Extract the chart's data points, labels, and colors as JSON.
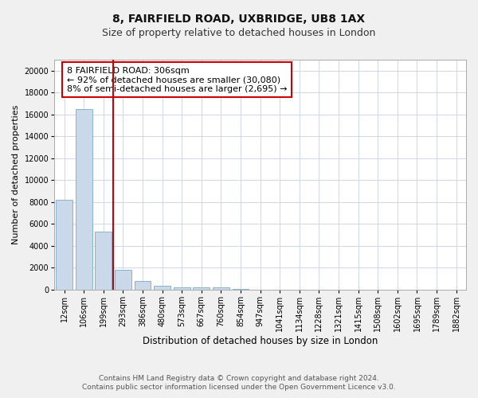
{
  "title1": "8, FAIRFIELD ROAD, UXBRIDGE, UB8 1AX",
  "title2": "Size of property relative to detached houses in London",
  "xlabel": "Distribution of detached houses by size in London",
  "ylabel": "Number of detached properties",
  "categories": [
    "12sqm",
    "106sqm",
    "199sqm",
    "293sqm",
    "386sqm",
    "480sqm",
    "573sqm",
    "667sqm",
    "760sqm",
    "854sqm",
    "947sqm",
    "1041sqm",
    "1134sqm",
    "1228sqm",
    "1321sqm",
    "1415sqm",
    "1508sqm",
    "1602sqm",
    "1695sqm",
    "1789sqm",
    "1882sqm"
  ],
  "values": [
    8200,
    16500,
    5300,
    1800,
    800,
    350,
    200,
    200,
    200,
    50,
    0,
    0,
    0,
    0,
    0,
    0,
    0,
    0,
    0,
    0,
    0
  ],
  "bar_color": "#c9d9ea",
  "bar_edge_color": "#7aaac8",
  "vline_index": 2.5,
  "vline_color": "#cc0000",
  "annotation_text": "8 FAIRFIELD ROAD: 306sqm\n← 92% of detached houses are smaller (30,080)\n8% of semi-detached houses are larger (2,695) →",
  "annotation_box_color": "white",
  "annotation_box_edge": "#cc0000",
  "ylim": [
    0,
    21000
  ],
  "yticks": [
    0,
    2000,
    4000,
    6000,
    8000,
    10000,
    12000,
    14000,
    16000,
    18000,
    20000
  ],
  "footer1": "Contains HM Land Registry data © Crown copyright and database right 2024.",
  "footer2": "Contains public sector information licensed under the Open Government Licence v3.0.",
  "bg_color": "#f0f0f0",
  "plot_bg_color": "#ffffff",
  "grid_color": "#d0d8e8",
  "title1_fontsize": 10,
  "title2_fontsize": 9,
  "xlabel_fontsize": 8.5,
  "ylabel_fontsize": 8,
  "tick_fontsize": 7,
  "annotation_fontsize": 8,
  "footer_fontsize": 6.5,
  "bar_width": 0.85
}
